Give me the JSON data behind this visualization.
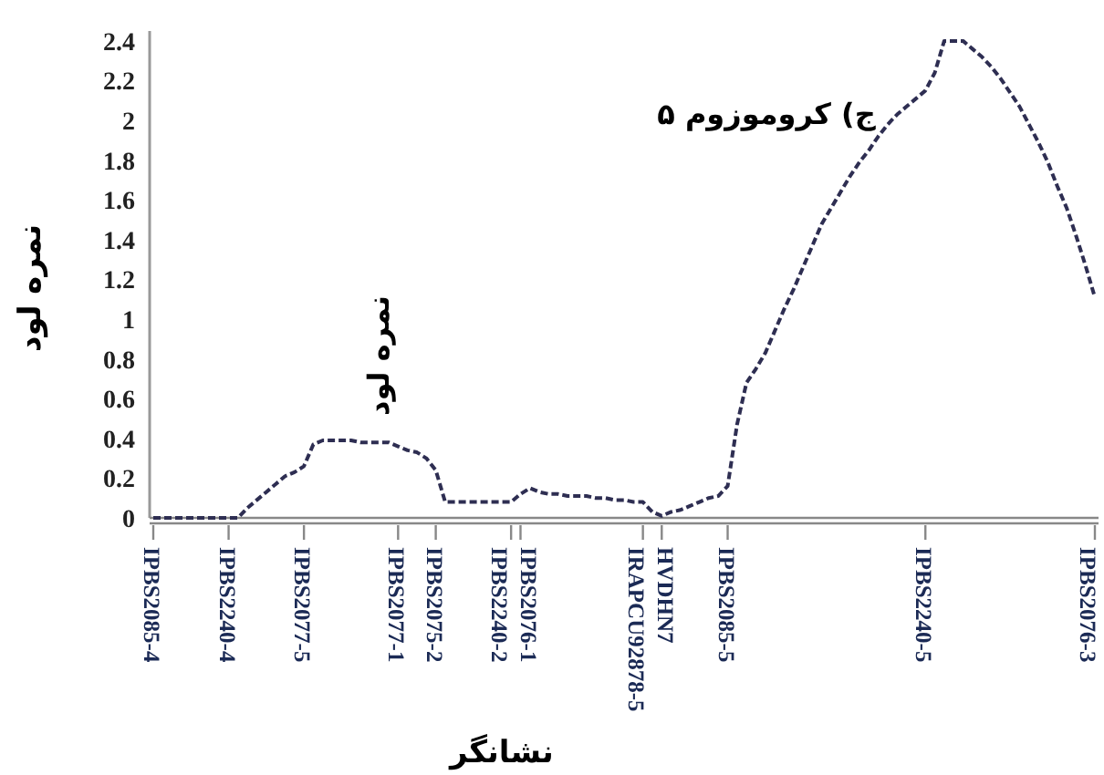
{
  "chart_data": {
    "type": "line",
    "ylabel": "نمره لود",
    "xlabel": "نشانگر",
    "annotations": [
      "ج) کروموزوم ۵",
      "نمره لود"
    ],
    "ylim": [
      0,
      2.45
    ],
    "yticks": [
      0,
      0.2,
      0.4,
      0.6,
      0.8,
      1,
      1.2,
      1.4,
      1.6,
      1.8,
      2,
      2.2,
      2.4
    ],
    "categories": [
      "IPBS2085-4",
      null,
      null,
      null,
      null,
      null,
      null,
      null,
      "IPBS2240-4",
      null,
      null,
      null,
      null,
      null,
      null,
      null,
      "IPBS2077-5",
      null,
      null,
      null,
      null,
      null,
      null,
      null,
      null,
      null,
      "IPBS2077-1",
      null,
      null,
      null,
      "IPBS2075-2",
      null,
      null,
      null,
      null,
      null,
      null,
      null,
      "IPBS2240-2",
      "IPBS2076-1",
      null,
      null,
      null,
      null,
      null,
      null,
      null,
      null,
      null,
      null,
      null,
      null,
      "IRAPCU92878-5",
      null,
      "HVDHN7",
      null,
      null,
      null,
      null,
      null,
      null,
      "IPBS2085-5",
      null,
      null,
      null,
      null,
      null,
      null,
      null,
      null,
      null,
      null,
      null,
      null,
      null,
      null,
      null,
      null,
      null,
      null,
      null,
      null,
      "IPBS2240-5",
      null,
      null,
      null,
      null,
      null,
      null,
      null,
      null,
      null,
      null,
      null,
      null,
      null,
      null,
      null,
      null,
      null,
      "IPBS2076-3"
    ],
    "series": [
      {
        "color": "#2e2e52",
        "line_style": "dashed",
        "values": [
          0,
          0,
          0,
          0,
          0,
          0,
          0,
          0,
          0,
          0,
          0.05,
          0.09,
          0.13,
          0.17,
          0.21,
          0.23,
          0.26,
          0.37,
          0.39,
          0.39,
          0.39,
          0.39,
          0.38,
          0.38,
          0.38,
          0.38,
          0.36,
          0.34,
          0.33,
          0.3,
          0.24,
          0.08,
          0.08,
          0.08,
          0.08,
          0.08,
          0.08,
          0.08,
          0.08,
          0.12,
          0.15,
          0.13,
          0.12,
          0.12,
          0.11,
          0.11,
          0.11,
          0.1,
          0.1,
          0.09,
          0.09,
          0.08,
          0.08,
          0.03,
          0.01,
          0.03,
          0.04,
          0.06,
          0.08,
          0.1,
          0.11,
          0.16,
          0.47,
          0.68,
          0.75,
          0.83,
          0.94,
          1.05,
          1.15,
          1.26,
          1.37,
          1.48,
          1.56,
          1.64,
          1.72,
          1.79,
          1.85,
          1.92,
          1.98,
          2.03,
          2.07,
          2.11,
          2.15,
          2.24,
          2.4,
          2.4,
          2.4,
          2.36,
          2.32,
          2.27,
          2.21,
          2.14,
          2.07,
          1.98,
          1.89,
          1.79,
          1.67,
          1.56,
          1.42,
          1.27,
          1.11
        ]
      }
    ],
    "grid": false
  }
}
